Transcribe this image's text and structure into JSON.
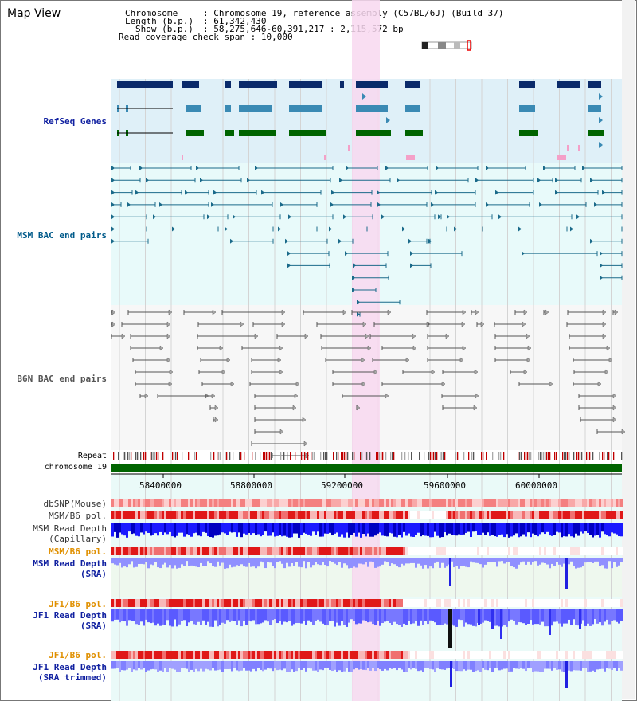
{
  "view_title": "Map View",
  "header": {
    "chromosome_key": "Chromosome",
    "chromosome_value": "Chromosome 19, reference assembly (C57BL/6J) (Build 37)",
    "length_key": "Length (b.p.)",
    "length_value": "61,342,430",
    "show_key": "Show (b.p.)",
    "show_value": "58,275,646-60,391,217 : 2,115,572 bp",
    "coverage_key": "Read coverage check span",
    "coverage_value": "10,000"
  },
  "tracks": {
    "refseq": "RefSeq Genes",
    "msm_bac": "MSM BAC end pairs",
    "b6n_bac": "B6N BAC end pairs",
    "repeat": "Repeat",
    "chromosome": "chromosome 19",
    "dbsnp": "dbSNP(Mouse)",
    "msm_b6_pol_1": "MSM/B6 pol.",
    "msm_depth_cap_1": "MSM Read Depth",
    "msm_depth_cap_2": "(Capillary)",
    "msm_b6_pol_2": "MSM/B6 pol.",
    "msm_depth_sra_1": "MSM Read Depth",
    "msm_depth_sra_2": "(SRA)",
    "jf1_pol_1": "JF1/B6 pol.",
    "jf1_depth_sra_1": "JF1 Read Depth",
    "jf1_depth_sra_2": "(SRA)",
    "jf1_pol_2": "JF1/B6 pol.",
    "jf1_trim_1": "JF1 Read Depth",
    "jf1_trim_2": "(SRA trimmed)"
  },
  "axis_ticks": [
    "58400000",
    "58800000",
    "59200000",
    "59600000",
    "60000000"
  ],
  "colors": {
    "refseq_bg": "#dff0f8",
    "msm_bg": "#e8fafa",
    "b6n_bg": "#f7f7f7",
    "highlight": "#f8d8f0",
    "chromosome": "#006400",
    "gene_dark": "#0a2a6a",
    "gene_mid": "#3a8ab4",
    "gene_green": "#006400",
    "msm_line": "#1a6a8a",
    "b6n_line": "#555555",
    "track_label_blue": "#1020a0",
    "track_label_orange": "#e09000",
    "msm_label": "#005a8a",
    "b6n_label": "#555555"
  }
}
